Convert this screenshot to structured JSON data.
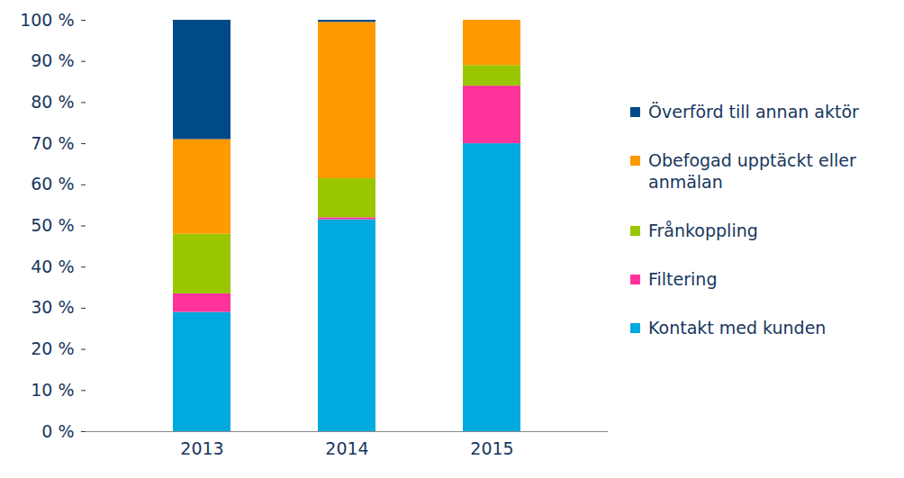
{
  "chart_data": {
    "type": "bar",
    "stacked": true,
    "legend": "right",
    "grid": false,
    "categories": [
      "2013",
      "2014",
      "2015"
    ],
    "series": [
      {
        "name": "Kontakt med kunden",
        "color": "#00a9e0",
        "values": [
          29,
          51.5,
          70
        ]
      },
      {
        "name": "Filtering",
        "color": "#ff3399",
        "values": [
          4.5,
          0.5,
          14
        ]
      },
      {
        "name": "Frånkoppling",
        "color": "#99c600",
        "values": [
          14.5,
          9.5,
          5
        ]
      },
      {
        "name": "Obefogad upptäckt eller anmälan",
        "color": "#ff9900",
        "values": [
          23,
          38,
          11
        ]
      },
      {
        "name": "Överförd till annan aktör",
        "color": "#004a87",
        "values": [
          29,
          0.5,
          0
        ]
      }
    ],
    "ylim": [
      0,
      100
    ],
    "yticks": [
      {
        "value": 0,
        "label": "0 %"
      },
      {
        "value": 10,
        "label": "10 %"
      },
      {
        "value": 20,
        "label": "20 %"
      },
      {
        "value": 30,
        "label": "30 %"
      },
      {
        "value": 40,
        "label": "40 %"
      },
      {
        "value": 50,
        "label": "50 %"
      },
      {
        "value": 60,
        "label": "60 %"
      },
      {
        "value": 70,
        "label": "70 %"
      },
      {
        "value": 80,
        "label": "80 %"
      },
      {
        "value": 90,
        "label": "90 %"
      },
      {
        "value": 100,
        "label": "100 %"
      }
    ]
  }
}
